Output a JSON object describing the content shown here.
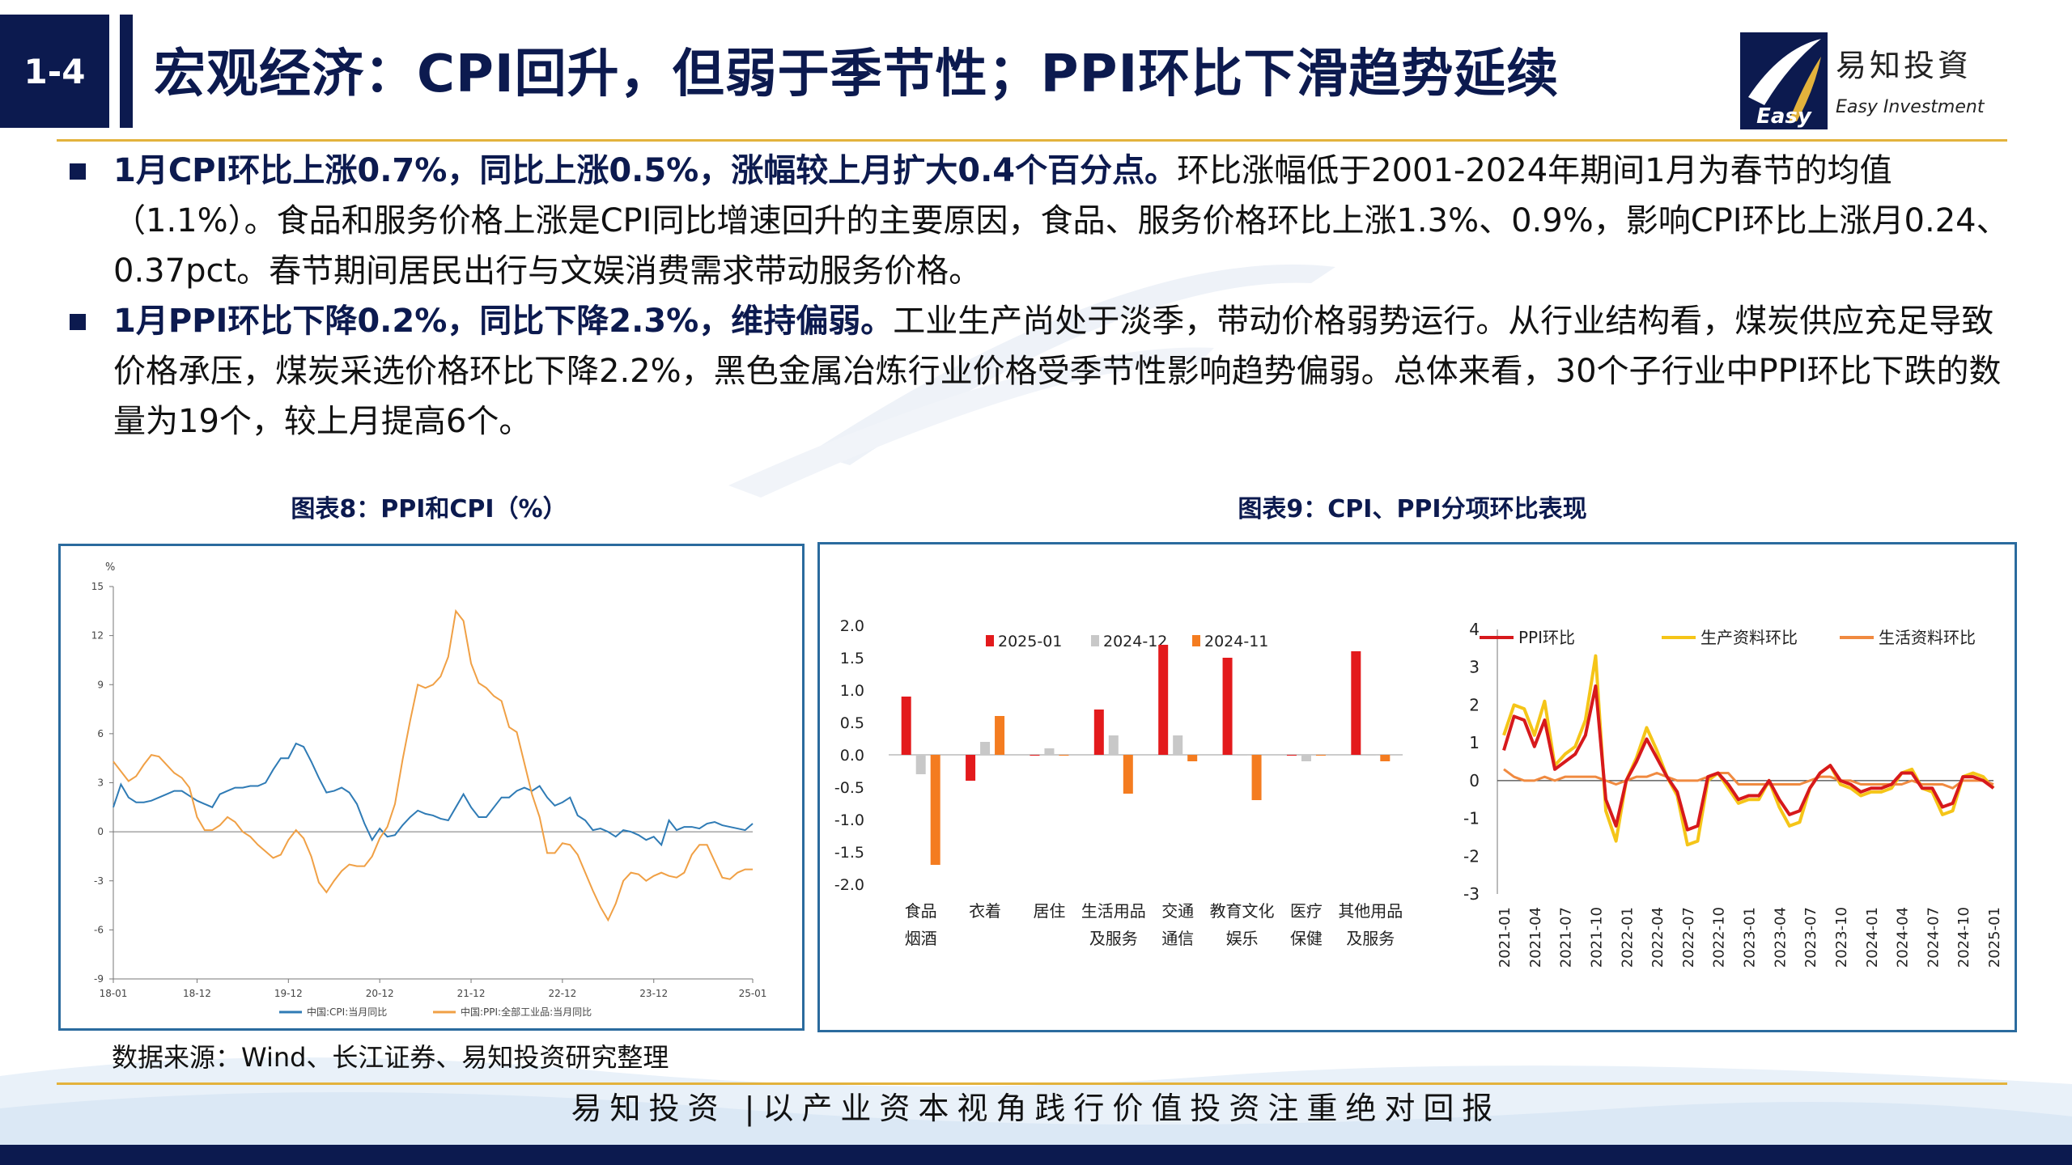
{
  "header": {
    "section_number": "1-4",
    "title": "宏观经济：CPI回升，但弱于季节性；PPI环比下滑趋势延续",
    "logo_cn": "易知投資",
    "logo_en": "Easy Investment",
    "logo_mark_text": "Easy"
  },
  "bullets": [
    {
      "bold": "1月CPI环比上涨0.7%，同比上涨0.5%，涨幅较上月扩大0.4个百分点。",
      "text": "环比涨幅低于2001-2024年期间1月为春节的均值（1.1%）。食品和服务价格上涨是CPI同比增速回升的主要原因，食品、服务价格环比上涨1.3%、0.9%，影响CPI环比上涨月0.24、0.37pct。春节期间居民出行与文娱消费需求带动服务价格。"
    },
    {
      "bold": "1月PPI环比下降0.2%，同比下降2.3%，维持偏弱。",
      "text": "工业生产尚处于淡季，带动价格弱势运行。从行业结构看，煤炭供应充足导致价格承压，煤炭采选价格环比下降2.2%，黑色金属冶炼行业价格受季节性影响趋势偏弱。总体来看，30个子行业中PPI环比下跌的数量为19个，较上月提高6个。"
    }
  ],
  "captions": {
    "chart8": "图表8：PPI和CPI（%）",
    "chart9": "图表9：CPI、PPI分项环比表现"
  },
  "source": "数据来源：Wind、长江证券、易知投资研究整理",
  "footer": "易知投资 |以产业资本视角践行价值投资注重绝对回报",
  "colors": {
    "navy": "#0c1a4f",
    "gold": "#e3b23c",
    "cpi_line": "#2f7bb5",
    "ppi_line": "#f0a045",
    "bar_2501": "#e31a1c",
    "bar_2412": "#c8c8c8",
    "bar_2411": "#f47c20",
    "ppi_mom": "#d7191c",
    "producer_mom": "#f5c518",
    "consumer_mom": "#f08a40"
  },
  "chart_data": [
    {
      "type": "line",
      "unit_label": "%",
      "ylim": [
        -9,
        15
      ],
      "yticks": [
        -9,
        -6,
        -3,
        0,
        3,
        6,
        9,
        12,
        15
      ],
      "xticks": [
        "18-01",
        "18-12",
        "19-12",
        "20-12",
        "21-12",
        "22-12",
        "23-12",
        "25-01"
      ],
      "x_start": "2018-01",
      "x_end": "2025-01",
      "legend_position": "bottom",
      "series": [
        {
          "name": "中国:CPI:当月同比",
          "values": [
            1.5,
            2.9,
            2.1,
            1.8,
            1.8,
            1.9,
            2.1,
            2.3,
            2.5,
            2.5,
            2.2,
            1.9,
            1.7,
            1.5,
            2.3,
            2.5,
            2.7,
            2.7,
            2.8,
            2.8,
            3.0,
            3.8,
            4.5,
            4.5,
            5.4,
            5.2,
            4.3,
            3.3,
            2.4,
            2.5,
            2.7,
            2.4,
            1.7,
            0.5,
            -0.5,
            0.2,
            -0.3,
            -0.2,
            0.4,
            0.9,
            1.3,
            1.1,
            1.0,
            0.8,
            0.7,
            1.5,
            2.3,
            1.5,
            0.9,
            0.9,
            1.5,
            2.1,
            2.1,
            2.5,
            2.7,
            2.5,
            2.8,
            2.1,
            1.6,
            1.8,
            2.1,
            1.0,
            0.7,
            0.1,
            0.2,
            0.0,
            -0.3,
            0.1,
            0.0,
            -0.2,
            -0.5,
            -0.3,
            -0.8,
            0.7,
            0.1,
            0.3,
            0.3,
            0.2,
            0.5,
            0.6,
            0.4,
            0.3,
            0.2,
            0.1,
            0.5
          ]
        },
        {
          "name": "中国:PPI:全部工业品:当月同比",
          "values": [
            4.3,
            3.7,
            3.1,
            3.4,
            4.1,
            4.7,
            4.6,
            4.1,
            3.6,
            3.3,
            2.7,
            0.9,
            0.1,
            0.1,
            0.4,
            0.9,
            0.6,
            0.0,
            -0.3,
            -0.8,
            -1.2,
            -1.6,
            -1.4,
            -0.5,
            0.1,
            -0.4,
            -1.5,
            -3.1,
            -3.7,
            -3.0,
            -2.4,
            -2.0,
            -2.1,
            -2.1,
            -1.5,
            -0.4,
            0.3,
            1.7,
            4.4,
            6.8,
            9.0,
            8.8,
            9.0,
            9.5,
            10.7,
            13.5,
            12.9,
            10.3,
            9.1,
            8.8,
            8.3,
            8.0,
            6.4,
            6.1,
            4.2,
            2.3,
            0.9,
            -1.3,
            -1.3,
            -0.7,
            -0.8,
            -1.4,
            -2.5,
            -3.6,
            -4.6,
            -5.4,
            -4.4,
            -3.0,
            -2.5,
            -2.6,
            -3.0,
            -2.7,
            -2.5,
            -2.7,
            -2.8,
            -2.5,
            -1.4,
            -0.8,
            -0.8,
            -1.8,
            -2.8,
            -2.9,
            -2.5,
            -2.3,
            -2.3
          ]
        }
      ]
    },
    {
      "type": "bar",
      "ylim": [
        -2.0,
        2.0
      ],
      "yticks": [
        "2.0",
        "1.5",
        "1.0",
        "0.5",
        "0.0",
        "-0.5",
        "-1.0",
        "-1.5",
        "-2.0"
      ],
      "legend_position": "top",
      "categories": [
        [
          "食品",
          "烟酒"
        ],
        [
          "衣着"
        ],
        [
          "居住"
        ],
        [
          "生活用品",
          "及服务"
        ],
        [
          "交通",
          "通信"
        ],
        [
          "教育文化",
          "娱乐"
        ],
        [
          "医疗",
          "保健"
        ],
        [
          "其他用品",
          "及服务"
        ]
      ],
      "series": [
        {
          "name": "2025-01",
          "values": [
            0.9,
            -0.4,
            0.0,
            0.7,
            1.7,
            1.5,
            0.0,
            1.6
          ]
        },
        {
          "name": "2024-12",
          "values": [
            -0.3,
            0.2,
            0.1,
            0.3,
            0.3,
            0.0,
            -0.1,
            0.0
          ]
        },
        {
          "name": "2024-11",
          "values": [
            -1.7,
            0.6,
            0.0,
            -0.6,
            -0.1,
            -0.7,
            0.0,
            -0.1
          ]
        }
      ]
    },
    {
      "type": "line",
      "ylim": [
        -3,
        4
      ],
      "yticks": [
        "4",
        "3",
        "2",
        "1",
        "0",
        "-1",
        "-2",
        "-3"
      ],
      "x_start": "2021-01",
      "x_end": "2025-01",
      "xticks": [
        "2021-01",
        "2021-04",
        "2021-07",
        "2021-10",
        "2022-01",
        "2022-04",
        "2022-07",
        "2022-10",
        "2023-01",
        "2023-04",
        "2023-07",
        "2023-10",
        "2024-01",
        "2024-04",
        "2024-07",
        "2024-10",
        "2025-01"
      ],
      "legend_position": "top",
      "series": [
        {
          "name": "PPI环比",
          "values": [
            0.8,
            1.7,
            1.6,
            0.9,
            1.6,
            0.3,
            0.5,
            0.7,
            1.2,
            2.5,
            -0.5,
            -1.2,
            0.0,
            0.5,
            1.1,
            0.6,
            0.1,
            -0.3,
            -1.3,
            -1.2,
            0.1,
            0.2,
            -0.1,
            -0.5,
            -0.4,
            -0.4,
            0.0,
            -0.5,
            -0.9,
            -0.8,
            -0.2,
            0.2,
            0.4,
            0.0,
            -0.1,
            -0.3,
            -0.2,
            -0.2,
            -0.1,
            0.2,
            0.2,
            -0.2,
            -0.2,
            -0.7,
            -0.6,
            0.1,
            0.1,
            0.0,
            -0.2
          ]
        },
        {
          "name": "生产资料环比",
          "values": [
            1.2,
            2.0,
            1.9,
            1.2,
            2.1,
            0.4,
            0.7,
            0.9,
            1.6,
            3.3,
            -0.8,
            -1.6,
            0.0,
            0.6,
            1.4,
            0.8,
            0.1,
            -0.4,
            -1.7,
            -1.6,
            0.0,
            0.2,
            -0.2,
            -0.6,
            -0.5,
            -0.5,
            0.0,
            -0.7,
            -1.2,
            -1.1,
            -0.2,
            0.2,
            0.4,
            -0.1,
            -0.2,
            -0.4,
            -0.3,
            -0.3,
            -0.2,
            0.2,
            0.3,
            -0.2,
            -0.3,
            -0.9,
            -0.8,
            0.1,
            0.2,
            0.1,
            -0.2
          ]
        },
        {
          "name": "生活资料环比",
          "values": [
            0.3,
            0.1,
            0.0,
            0.0,
            0.1,
            0.0,
            0.1,
            0.1,
            0.1,
            0.1,
            0.0,
            -0.1,
            0.0,
            0.1,
            0.1,
            0.2,
            0.1,
            0.0,
            0.0,
            0.0,
            0.1,
            0.2,
            0.2,
            -0.1,
            -0.1,
            -0.1,
            -0.1,
            -0.1,
            -0.1,
            -0.1,
            0.0,
            0.1,
            0.1,
            0.0,
            0.0,
            -0.1,
            -0.1,
            -0.1,
            -0.1,
            -0.1,
            0.0,
            -0.1,
            -0.1,
            -0.1,
            -0.2,
            0.0,
            0.0,
            0.0,
            -0.1
          ]
        }
      ]
    }
  ]
}
